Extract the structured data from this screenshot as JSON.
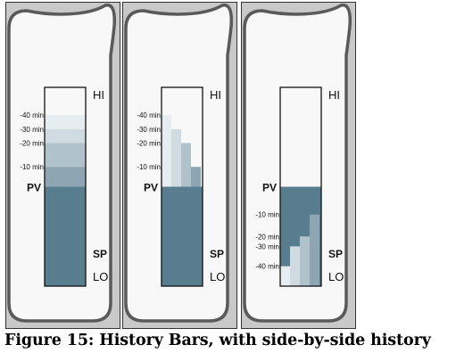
{
  "caption": "Figure 15: History Bars, with side-by-side history",
  "colors": {
    "panel_bg": "#c9c9c9",
    "card_fill": "#f8f8f8",
    "card_stroke": "#5a5a5a",
    "bar_fill": "#587d8f",
    "hist_10": "#8ea6b4",
    "hist_20": "#b0c2cc",
    "hist_30": "#cfdbe0",
    "hist_40": "#e6edf0"
  },
  "panels": [
    {
      "name": "panel-1",
      "labels": {
        "hi": "HI",
        "lo": "LO",
        "pv": "PV",
        "sp": "SP"
      },
      "style": "stacked",
      "pv_level": 0.5,
      "history": [
        {
          "label": "-10 min",
          "level": 0.6
        },
        {
          "label": "-20 min",
          "level": 0.72
        },
        {
          "label": "-30 min",
          "level": 0.79
        },
        {
          "label": "-40 min",
          "level": 0.86
        }
      ]
    },
    {
      "name": "panel-2",
      "labels": {
        "hi": "HI",
        "lo": "LO",
        "pv": "PV",
        "sp": "SP"
      },
      "style": "side-by-side",
      "pv_level": 0.5,
      "history": [
        {
          "label": "-10 min",
          "level": 0.6
        },
        {
          "label": "-20 min",
          "level": 0.72
        },
        {
          "label": "-30 min",
          "level": 0.79
        },
        {
          "label": "-40 min",
          "level": 0.86
        }
      ]
    },
    {
      "name": "panel-3",
      "labels": {
        "hi": "HI",
        "lo": "LO",
        "pv": "PV",
        "sp": "SP"
      },
      "style": "side-by-side",
      "pv_level": 0.5,
      "history": [
        {
          "label": "-10 min",
          "level": 0.36
        },
        {
          "label": "-20 min",
          "level": 0.25
        },
        {
          "label": "-30 min",
          "level": 0.2
        },
        {
          "label": "-40 min",
          "level": 0.1
        }
      ]
    }
  ]
}
